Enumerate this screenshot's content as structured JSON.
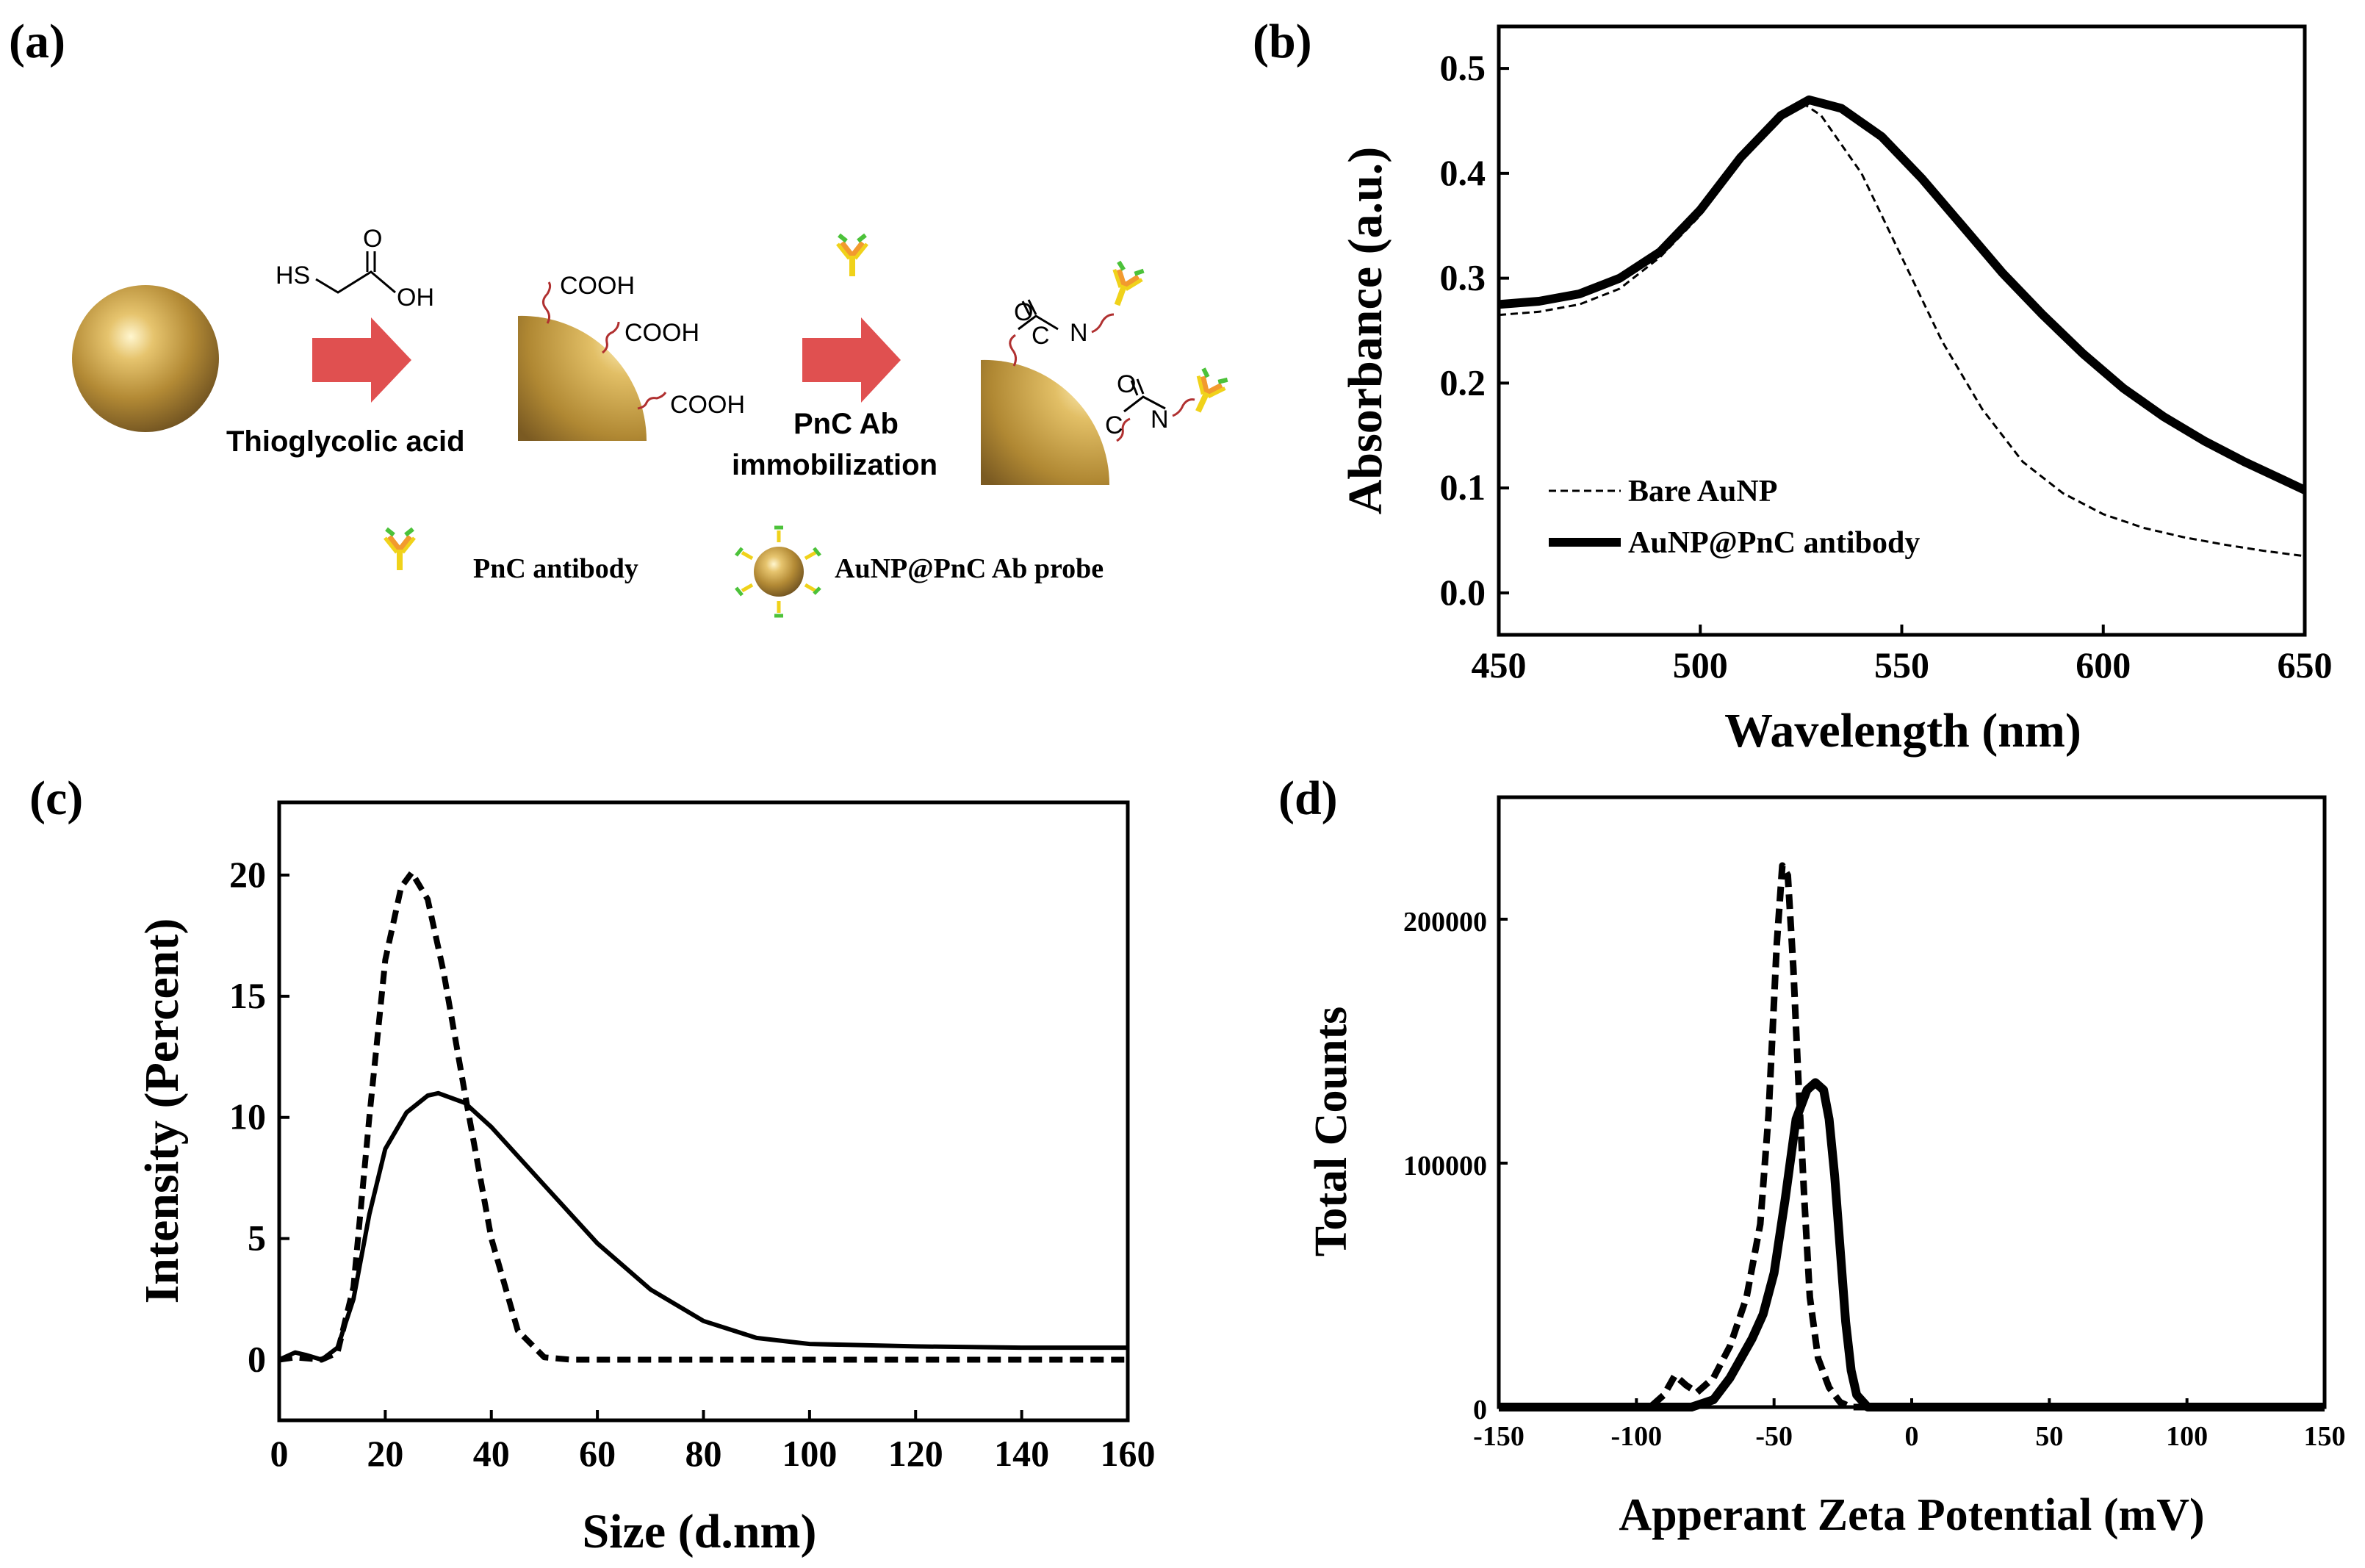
{
  "figure": {
    "panel_labels": [
      "(a)",
      "(b)",
      "(c)",
      "(d)"
    ]
  },
  "scheme": {
    "reagent_1": {
      "label": "Thioglycolic acid",
      "formula_sh": "HS",
      "formula_o": "O",
      "formula_oh": "OH"
    },
    "cooh_groups": [
      "COOH",
      "COOH",
      "COOH"
    ],
    "reagent_2": {
      "label_line1": "PnC Ab",
      "label_line2": "immobilization"
    },
    "amide_atoms": {
      "o": "O",
      "c": "C",
      "n": "N"
    },
    "key": {
      "antibody": "PnC antibody",
      "probe": "AuNP@PnC Ab probe"
    },
    "colors": {
      "gold": "#c9a24a",
      "arrow": "#e05050",
      "linker": "#b03030",
      "antibody_yellow": "#f0d21a",
      "antibody_orange": "#f29a2e",
      "antibody_green": "#4cc23a"
    }
  },
  "chart_data": [
    {
      "id": "b",
      "type": "line",
      "xlabel": "Wavelength (nm)",
      "ylabel": "Absorbance (a.u.)",
      "xlim": [
        450,
        650
      ],
      "ylim": [
        -0.04,
        0.54
      ],
      "xticks": [
        450,
        500,
        550,
        600,
        650
      ],
      "yticks": [
        0.0,
        0.1,
        0.2,
        0.3,
        0.4,
        0.5
      ],
      "ytick_labels": [
        "0.0",
        "0.1",
        "0.2",
        "0.3",
        "0.4",
        "0.5"
      ],
      "legend": {
        "placement": "bottom-left",
        "entries": [
          "Bare AuNP",
          "AuNP@PnC antibody"
        ]
      },
      "series": [
        {
          "name": "Bare AuNP",
          "style": "dashed-thin",
          "x": [
            450,
            460,
            470,
            480,
            490,
            500,
            510,
            520,
            525,
            530,
            540,
            550,
            560,
            570,
            580,
            590,
            600,
            610,
            620,
            630,
            640,
            650
          ],
          "y": [
            0.265,
            0.268,
            0.275,
            0.29,
            0.32,
            0.36,
            0.415,
            0.455,
            0.468,
            0.455,
            0.4,
            0.32,
            0.24,
            0.175,
            0.125,
            0.095,
            0.075,
            0.062,
            0.053,
            0.046,
            0.04,
            0.035
          ]
        },
        {
          "name": "AuNP@PnC antibody",
          "style": "solid-thick",
          "x": [
            450,
            460,
            470,
            480,
            490,
            500,
            510,
            520,
            527,
            535,
            545,
            555,
            565,
            575,
            585,
            595,
            605,
            615,
            625,
            635,
            645,
            650
          ],
          "y": [
            0.275,
            0.278,
            0.285,
            0.3,
            0.325,
            0.365,
            0.415,
            0.455,
            0.47,
            0.462,
            0.435,
            0.395,
            0.35,
            0.305,
            0.265,
            0.228,
            0.195,
            0.168,
            0.145,
            0.125,
            0.107,
            0.098
          ]
        }
      ]
    },
    {
      "id": "c",
      "type": "line",
      "xlabel": "Size (d.nm)",
      "ylabel": "Intensity (Percent)",
      "xlim": [
        0,
        160
      ],
      "ylim": [
        -2.5,
        23
      ],
      "xticks": [
        0,
        20,
        40,
        60,
        80,
        100,
        120,
        140,
        160
      ],
      "yticks": [
        0,
        5,
        10,
        15,
        20
      ],
      "series": [
        {
          "name": "Bare AuNP",
          "style": "dashed-thick",
          "x": [
            0,
            3,
            8,
            11,
            14,
            17,
            20,
            23,
            25,
            28,
            31,
            35,
            40,
            45,
            50,
            55,
            160
          ],
          "y": [
            0,
            0.1,
            0,
            0.3,
            3,
            10,
            16.5,
            19.5,
            20.1,
            19,
            16,
            11,
            5,
            1.2,
            0.1,
            0,
            0
          ]
        },
        {
          "name": "AuNP@PnC antibody",
          "style": "solid-thick",
          "x": [
            0,
            3,
            5,
            8,
            11,
            14,
            17,
            20,
            24,
            28,
            30,
            35,
            40,
            50,
            60,
            70,
            80,
            90,
            100,
            120,
            140,
            160
          ],
          "y": [
            0,
            0.3,
            0.2,
            0,
            0.5,
            2.5,
            6,
            8.7,
            10.2,
            10.9,
            11.0,
            10.6,
            9.6,
            7.2,
            4.8,
            2.9,
            1.6,
            0.9,
            0.65,
            0.55,
            0.5,
            0.5
          ]
        }
      ]
    },
    {
      "id": "d",
      "type": "line",
      "xlabel": "Apperant Zeta Potential (mV)",
      "ylabel": "Total Counts",
      "xlim": [
        -150,
        150
      ],
      "ylim": [
        0,
        250000
      ],
      "xticks": [
        -150,
        -100,
        -50,
        0,
        50,
        100,
        150
      ],
      "yticks": [
        0,
        100000,
        200000
      ],
      "series": [
        {
          "name": "Bare AuNP",
          "style": "dashed-thick",
          "x": [
            -150,
            -95,
            -90,
            -86,
            -82,
            -78,
            -72,
            -66,
            -60,
            -55,
            -52,
            -49,
            -47,
            -45,
            -43,
            -41,
            -39,
            -37,
            -34,
            -30,
            -26,
            -22,
            150
          ],
          "y": [
            0,
            0,
            5000,
            13000,
            9000,
            6000,
            12000,
            25000,
            45000,
            75000,
            120000,
            190000,
            222000,
            218000,
            180000,
            130000,
            85000,
            45000,
            20000,
            8000,
            2000,
            0,
            0
          ]
        },
        {
          "name": "AuNP@PnC antibody",
          "style": "solid-thick",
          "x": [
            -150,
            -80,
            -72,
            -66,
            -62,
            -58,
            -54,
            -50,
            -46,
            -42,
            -38,
            -35,
            -32,
            -30,
            -28,
            -26,
            -24,
            -22,
            -20,
            -16,
            150
          ],
          "y": [
            0,
            0,
            3000,
            12000,
            20000,
            28000,
            38000,
            55000,
            85000,
            118000,
            130000,
            133000,
            130000,
            118000,
            95000,
            65000,
            35000,
            15000,
            5000,
            0,
            0
          ]
        }
      ]
    }
  ]
}
